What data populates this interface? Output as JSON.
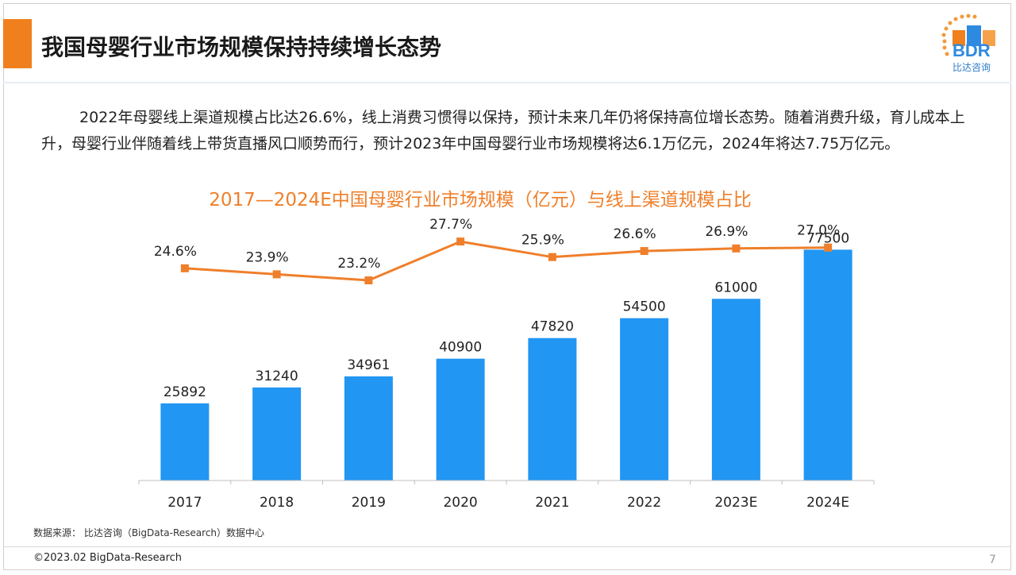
{
  "page": {
    "title": "我国母婴行业市场规模保持持续增长态势",
    "body": "2022年母婴线上渠道规模占比达26.6%，线上消费习惯得以保持，预计未来几年仍将保持高位增长态势。随着消费升级，育儿成本上升，母婴行业伴随着线上带货直播风口顺势而行，预计2023年中国母婴行业市场规模将达6.1万亿元，2024年将达7.75万亿元。",
    "source": "数据来源：  比达咨询（BigData-Research）数据中心",
    "copyright": "©2023.02 BigData-Research",
    "page_number": "7"
  },
  "logo": {
    "text": "BDR",
    "subtitle": "比达咨询"
  },
  "colors": {
    "accent": "#f0801e",
    "bar": "#2196f3",
    "line": "#ef7f2a",
    "title": "#ef7f2a"
  },
  "chart_data": {
    "type": "bar",
    "title": "2017—2024E中国母婴行业市场规模（亿元）与线上渠道规模占比",
    "categories": [
      "2017",
      "2018",
      "2019",
      "2020",
      "2021",
      "2022",
      "2023E",
      "2024E"
    ],
    "series": [
      {
        "type": "bar",
        "values": [
          25892,
          31240,
          34961,
          40900,
          47820,
          54500,
          61000,
          77500
        ],
        "labels": [
          "25892",
          "31240",
          "34961",
          "40900",
          "47820",
          "54500",
          "61000",
          "77500"
        ]
      },
      {
        "type": "line",
        "values": [
          24.6,
          23.9,
          23.2,
          27.7,
          25.9,
          26.6,
          26.9,
          27.0
        ],
        "labels": [
          "24.6%",
          "23.9%",
          "23.2%",
          "27.7%",
          "25.9%",
          "26.6%",
          "26.9%",
          "27.0%"
        ]
      }
    ],
    "xlabel": "",
    "ylabel": "",
    "ylim": [
      0,
      84000
    ],
    "y2lim": [
      0,
      29
    ],
    "grid": false,
    "legend": "none"
  }
}
